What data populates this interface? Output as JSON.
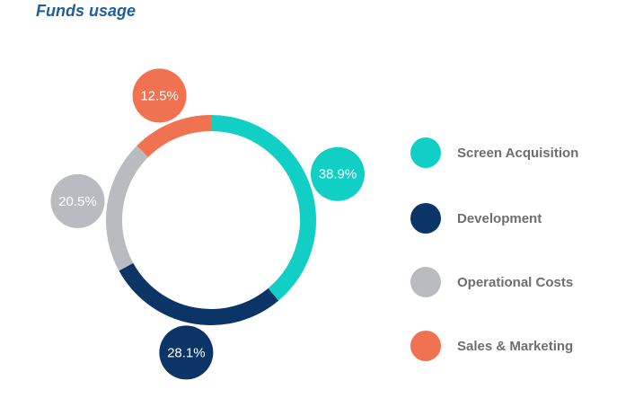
{
  "header": {
    "title": "Funds usage"
  },
  "chart_data": {
    "type": "pie",
    "title": "Funds usage",
    "categories": [
      "Screen Acquisition",
      "Development",
      "Operational Costs",
      "Sales & Marketing"
    ],
    "values": [
      38.9,
      28.1,
      20.5,
      12.5
    ],
    "labels": [
      "38.9%",
      "28.1%",
      "20.5%",
      "12.5%"
    ],
    "colors": [
      "#12cfc5",
      "#0c3567",
      "#b9bbc0",
      "#f07250"
    ],
    "style": "donut",
    "legend": "right"
  }
}
